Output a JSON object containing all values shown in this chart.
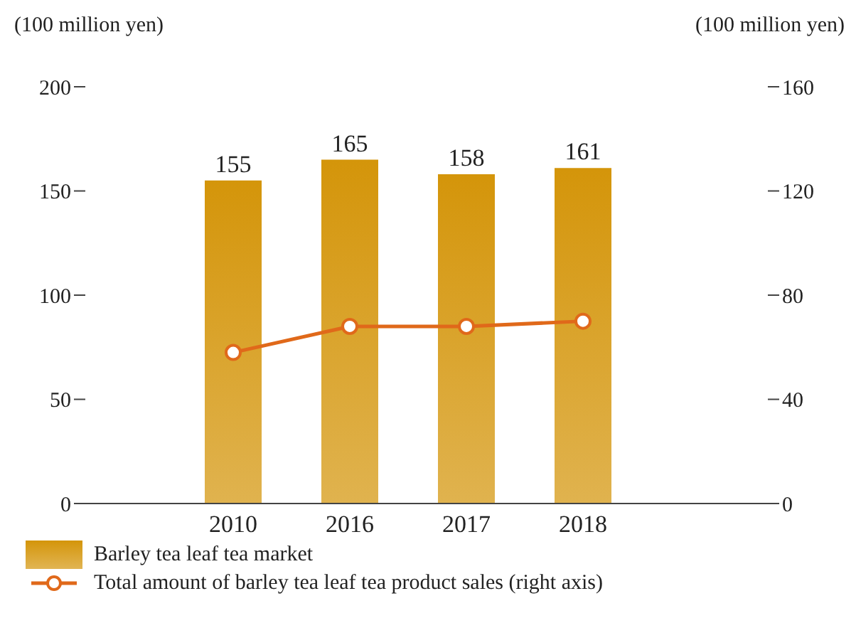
{
  "chart_data": {
    "type": "bar",
    "ylabel": "(100 million yen)",
    "y2label": "(100 million yen)",
    "categories": [
      "2010",
      "2016",
      "2017",
      "2018"
    ],
    "series": [
      {
        "name": "Barley tea leaf tea market",
        "color": "#d4950a",
        "values": [
          155,
          165,
          158,
          161
        ],
        "value_labels": [
          "155",
          "165",
          "158",
          "161"
        ]
      },
      {
        "name": "Total amount of barley tea leaf tea product sales (right axis)",
        "type": "line",
        "axis": "y2",
        "color": "#e0691a",
        "marker": "circle",
        "values": [
          58,
          68,
          68,
          70
        ]
      }
    ],
    "ylim": [
      0,
      200
    ],
    "yticks": [
      0,
      50,
      100,
      150,
      200
    ],
    "y2lim": [
      0,
      160
    ],
    "y2ticks": [
      0,
      40,
      80,
      120,
      160
    ],
    "grid": false,
    "legend": "bottom left"
  }
}
